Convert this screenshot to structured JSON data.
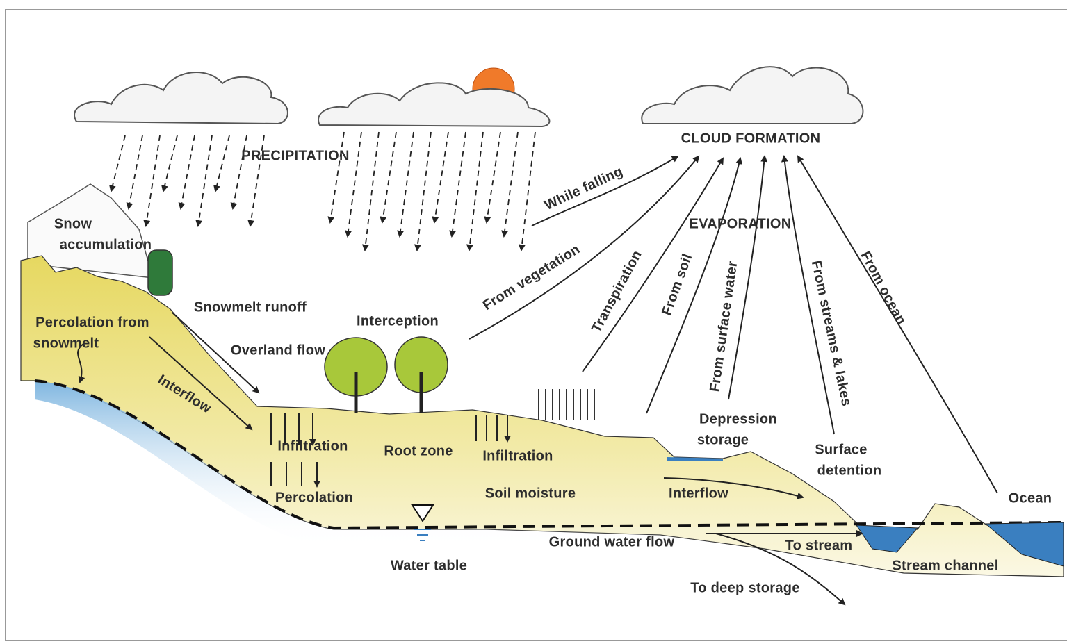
{
  "labels": [
    "PRECIPITATION",
    "CLOUD FORMATION",
    "While falling",
    "EVAPORATION",
    "From vegetation",
    "Transpiration",
    "From soil",
    "From surface water",
    "From streams & lakes",
    "From ocean",
    "Snow",
    "accumulation",
    "Snowmelt runoff",
    "Percolation from",
    "snowmelt",
    "Interception",
    "Overland flow",
    "Interflow",
    "Infiltration",
    "Root zone",
    "Infiltration",
    "Depression",
    "storage",
    "Surface",
    "detention",
    "Percolation",
    "Soil moisture",
    "Interflow",
    "Ocean",
    "Ground water flow",
    "To stream",
    "Water table",
    "Stream channel",
    "To deep storage"
  ]
}
